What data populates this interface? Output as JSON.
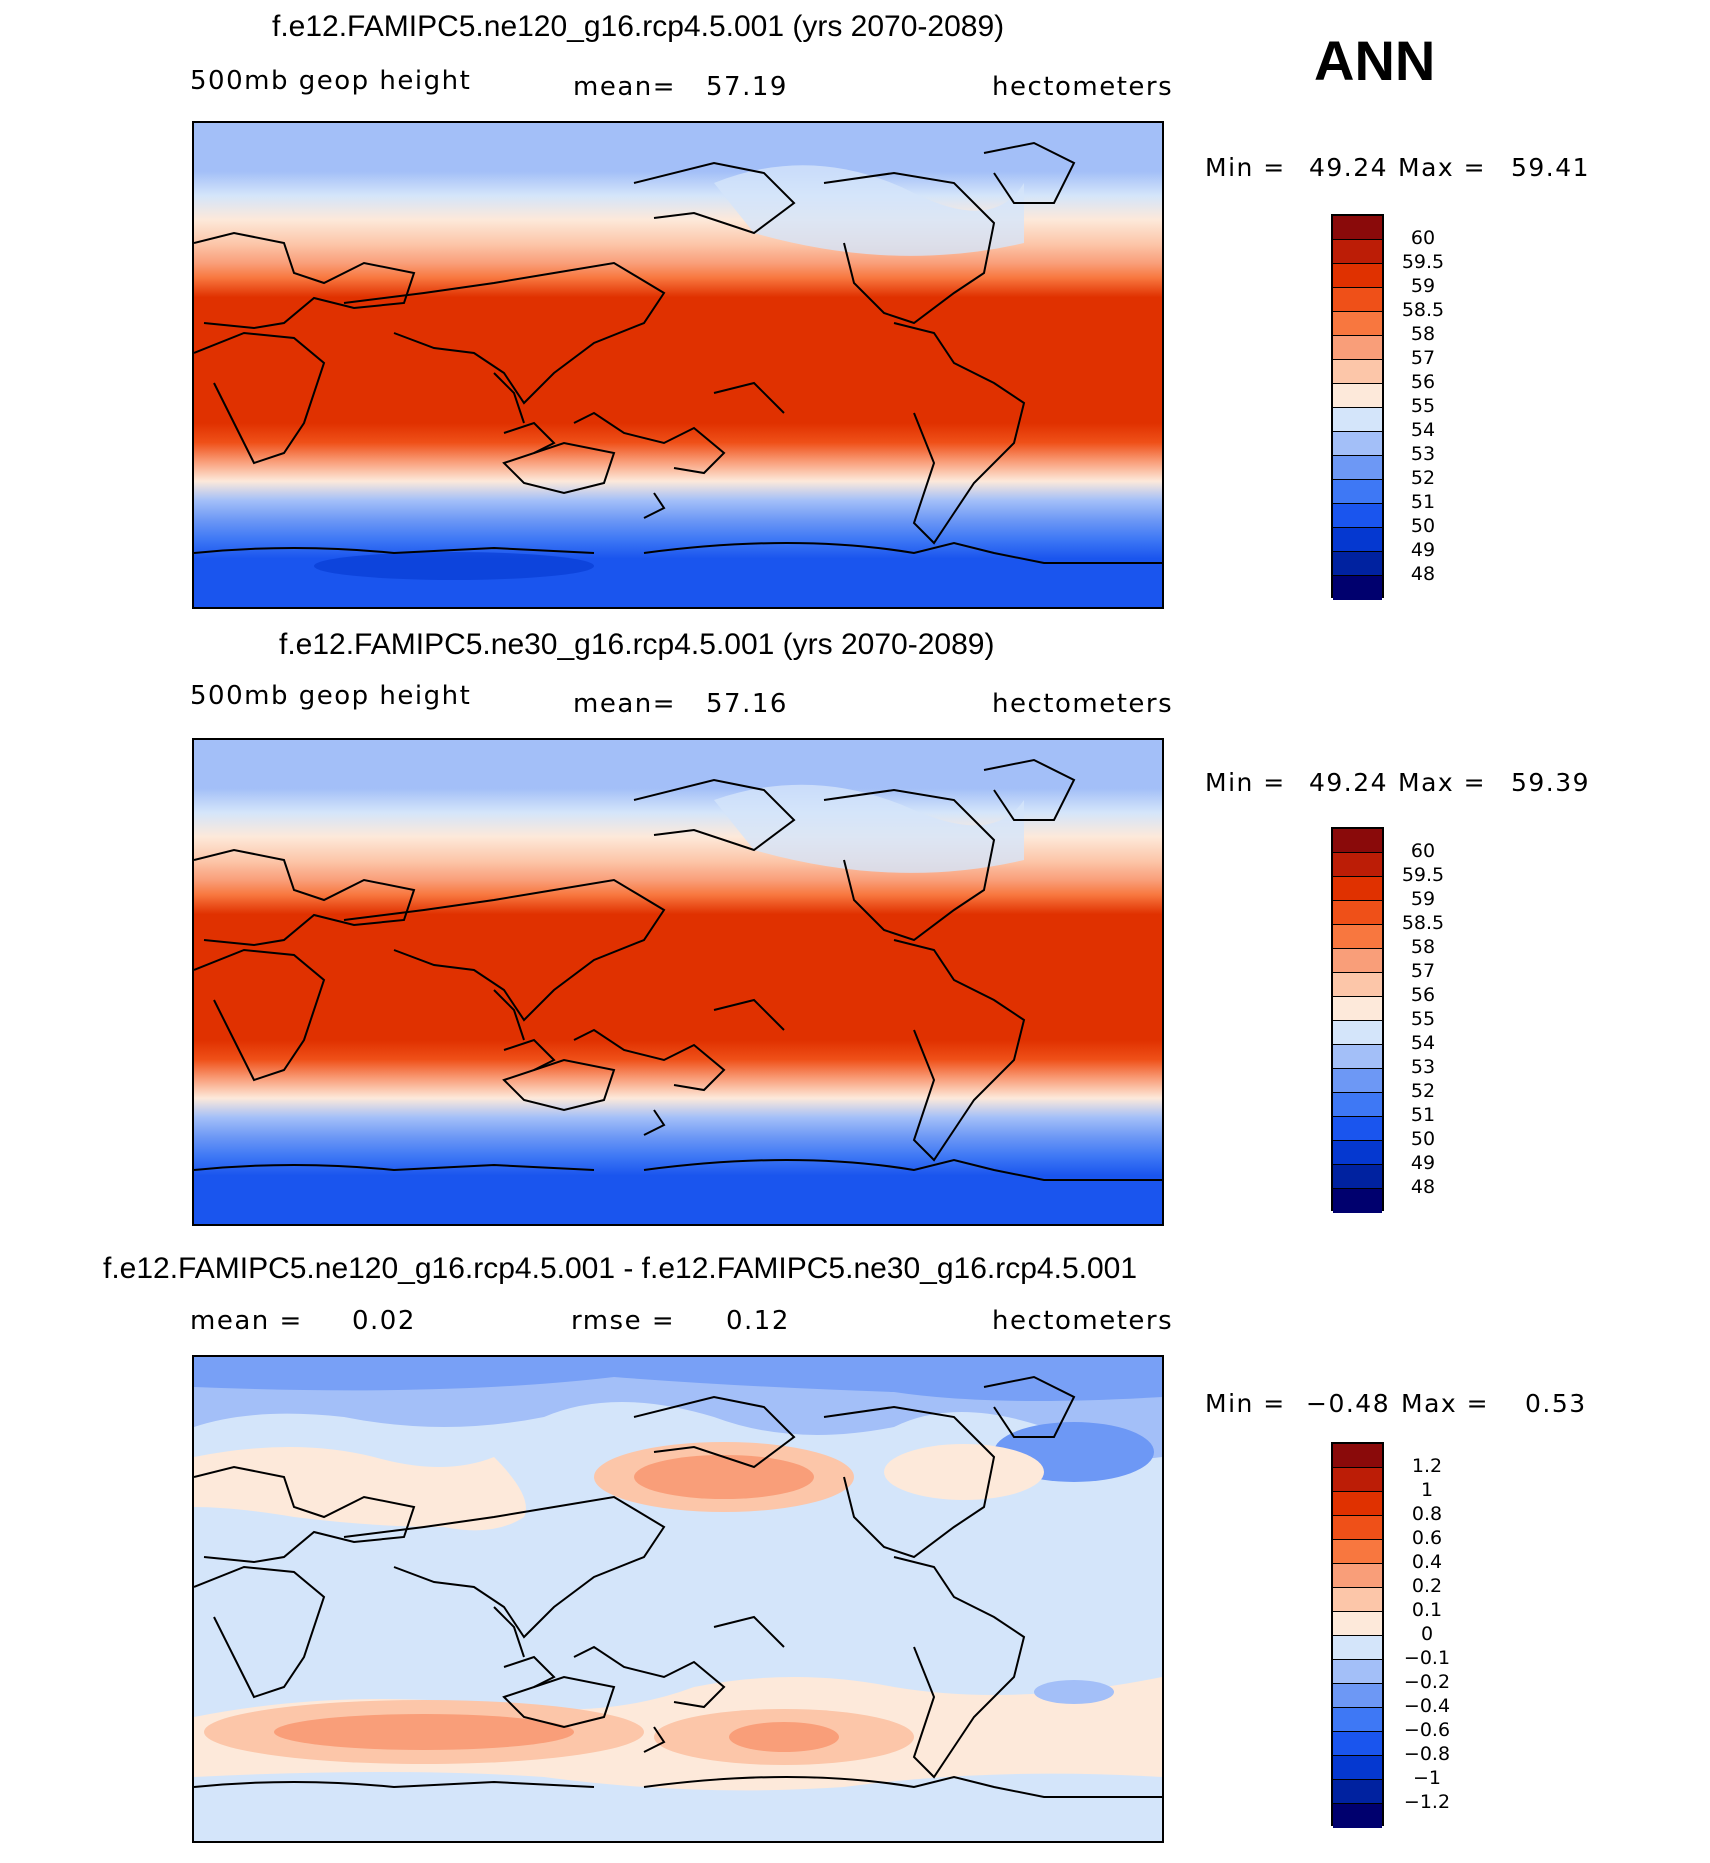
{
  "season": "ANN",
  "colors": {
    "abs_scale": [
      "#00006e",
      "#0022a0",
      "#0538d0",
      "#1a55ee",
      "#3e78f5",
      "#6d98f5",
      "#a3bff8",
      "#d4e5fa",
      "#fde9da",
      "#fcc6a9",
      "#f99e79",
      "#f8773f",
      "#ef5018",
      "#e03100",
      "#bc1d06",
      "#8a0a0a"
    ],
    "diff_scale": [
      "#00006e",
      "#0022a0",
      "#0538d0",
      "#1a55ee",
      "#3e78f5",
      "#6d98f5",
      "#a3bff8",
      "#d4e5fa",
      "#fde9da",
      "#fcc6a9",
      "#f99e79",
      "#f8773f",
      "#ef5018",
      "#e03100",
      "#bc1d06",
      "#8a0a0a"
    ]
  },
  "chart_data": [
    {
      "type": "heatmap",
      "title": "f.e12.FAMIPC5.ne120_g16.rcp4.5.001 (yrs 2070-2089)",
      "left_label": "500mb  geop  height",
      "mean_label": "mean=",
      "mean_value": "57.19",
      "units": "hectometers",
      "min_label": "Min  =",
      "min_value": "49.24",
      "max_label": "Max  =",
      "max_value": "59.41",
      "colorbar_levels": [
        "60",
        "59.5",
        "59",
        "58.5",
        "58",
        "57",
        "56",
        "55",
        "54",
        "53",
        "52",
        "51",
        "50",
        "49",
        "48"
      ]
    },
    {
      "type": "heatmap",
      "title": "f.e12.FAMIPC5.ne30_g16.rcp4.5.001 (yrs 2070-2089)",
      "left_label": "500mb  geop  height",
      "mean_label": "mean=",
      "mean_value": "57.16",
      "units": "hectometers",
      "min_label": "Min  =",
      "min_value": "49.24",
      "max_label": "Max  =",
      "max_value": "59.39",
      "colorbar_levels": [
        "60",
        "59.5",
        "59",
        "58.5",
        "58",
        "57",
        "56",
        "55",
        "54",
        "53",
        "52",
        "51",
        "50",
        "49",
        "48"
      ]
    },
    {
      "type": "heatmap",
      "title": "f.e12.FAMIPC5.ne120_g16.rcp4.5.001 - f.e12.FAMIPC5.ne30_g16.rcp4.5.001",
      "left_label": "mean  =",
      "left_value": "0.02",
      "rmse_label": "rmse  =",
      "rmse_value": "0.12",
      "units": "hectometers",
      "min_label": "Min  =",
      "min_value": "−0.48",
      "max_label": "Max  =",
      "max_value": "0.53",
      "colorbar_levels": [
        "1.2",
        "1",
        "0.8",
        "0.6",
        "0.4",
        "0.2",
        "0.1",
        "0",
        "−0.1",
        "−0.2",
        "−0.4",
        "−0.6",
        "−0.8",
        "−1",
        "−1.2"
      ]
    }
  ]
}
